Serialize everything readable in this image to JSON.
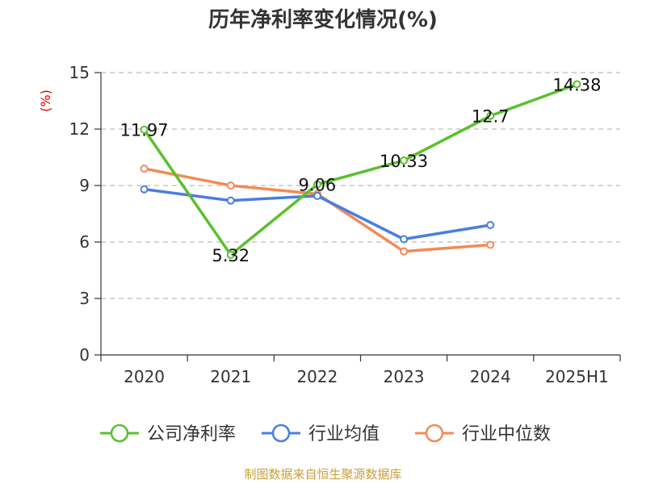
{
  "chart_data": {
    "type": "line",
    "title": "历年净利率变化情况(%)",
    "ylabel": "(%)",
    "xlabel": "",
    "categories": [
      "2020",
      "2021",
      "2022",
      "2023",
      "2024",
      "2025H1"
    ],
    "ylim": [
      0,
      15
    ],
    "yticks": [
      0,
      3,
      6,
      9,
      12,
      15
    ],
    "grid": true,
    "legend": "bottom",
    "series": [
      {
        "name": "公司净利率",
        "color": "#5ac02d",
        "values": [
          11.97,
          5.32,
          9.06,
          10.33,
          12.7,
          14.38
        ],
        "labels": [
          "11.97",
          "5.32",
          "9.06",
          "10.33",
          "12.7",
          "14.38"
        ]
      },
      {
        "name": "行业均值",
        "color": "#4a7fdc",
        "values": [
          8.8,
          8.2,
          8.45,
          6.15,
          6.9,
          null
        ],
        "labels": []
      },
      {
        "name": "行业中位数",
        "color": "#f38b55",
        "values": [
          9.9,
          9.0,
          8.55,
          5.5,
          5.85,
          null
        ],
        "labels": []
      }
    ]
  },
  "source": "制图数据来自恒生聚源数据库"
}
